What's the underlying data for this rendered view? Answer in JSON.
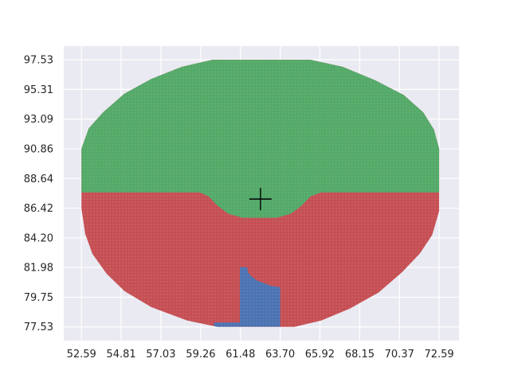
{
  "chart_data": {
    "type": "scatter",
    "title": "",
    "xlabel": "",
    "ylabel": "",
    "xlim": [
      51.6,
      73.7
    ],
    "ylim": [
      76.5,
      98.55
    ],
    "x_ticks": [
      "52.59",
      "54.81",
      "57.03",
      "59.26",
      "61.48",
      "63.70",
      "65.92",
      "68.15",
      "70.37",
      "72.59"
    ],
    "y_ticks": [
      "77.53",
      "79.75",
      "81.98",
      "84.20",
      "86.42",
      "88.64",
      "90.86",
      "93.09",
      "95.31",
      "97.53"
    ],
    "grid": true,
    "legend": "none",
    "center_marker": {
      "x": 62.6,
      "y": 87.1,
      "symbol": "+",
      "color": "#000000"
    },
    "series": [
      {
        "color": "#55a868",
        "region": "upper disc above y≈87.6 with a notch dipping to y≈85.7 between x≈59.2 and x≈66.0",
        "approx_extent": {
          "x": [
            52.59,
            72.59
          ],
          "y": [
            85.7,
            97.53
          ]
        }
      },
      {
        "color": "#c44e52",
        "region": "lower disc below y≈87.6, excluding the blue block",
        "approx_extent": {
          "x": [
            52.59,
            72.59
          ],
          "y": [
            77.53,
            87.6
          ]
        }
      },
      {
        "color": "#4c72b0",
        "region": "narrow block near the bottom center",
        "approx_extent": {
          "x": [
            60.0,
            63.7
          ],
          "y": [
            77.53,
            82.0
          ]
        }
      }
    ]
  }
}
